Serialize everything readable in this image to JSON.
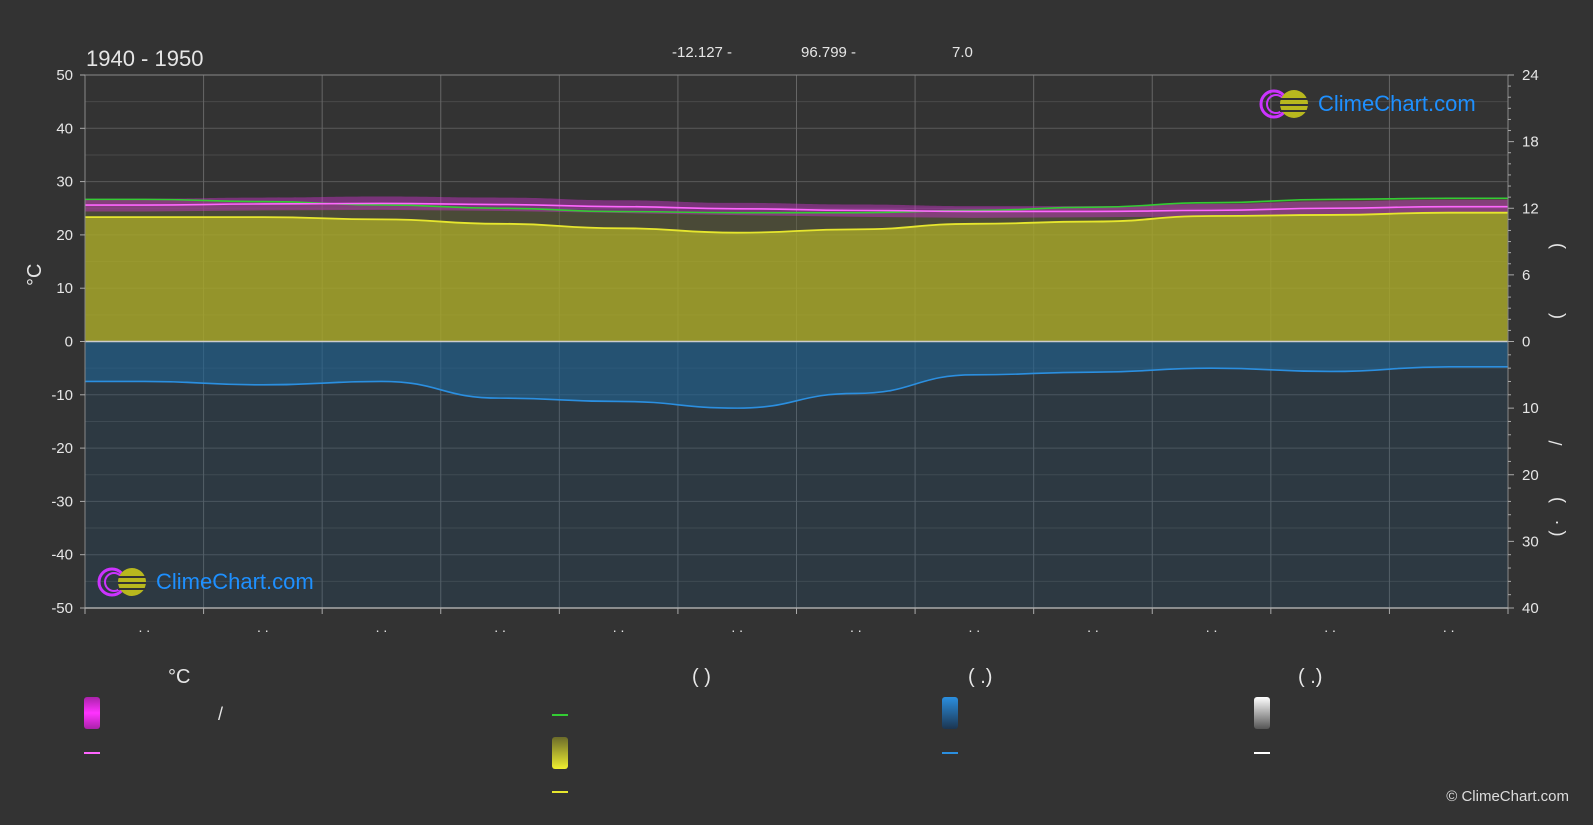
{
  "header": {
    "period": "1940 - 1950",
    "latitude": "-12.127 -",
    "longitude": "96.799 -",
    "elevation": "7.0"
  },
  "brand": {
    "logo_text": "ClimeChart.com",
    "copyright": "© ClimeChart.com"
  },
  "colors": {
    "background": "#333333",
    "sunshine_fill": "#a6a62a",
    "sunshine_line": "#e6e62e",
    "daylight_line": "#33cc33",
    "temp_line": "#ff66ff",
    "temp_band": "#cc33cc",
    "precip_fill": "#1f6fa8",
    "precip_line": "#2b8fe0",
    "brand_blue": "#1e90ff"
  },
  "legend": {
    "temperature_header": "°C",
    "sun_header": "(          )",
    "rain_header": "(   .)",
    "snow_header": "(   .)",
    "temp_range_separator": "/"
  },
  "chart_data": {
    "type": "area",
    "x_months": [
      1,
      2,
      3,
      4,
      5,
      6,
      7,
      8,
      9,
      10,
      11,
      12
    ],
    "x_tick_labels": [
      ". .",
      ". .",
      ". .",
      ". .",
      ". .",
      ". .",
      ". .",
      ". .",
      ". .",
      ". .",
      ". .",
      ". ."
    ],
    "left_axis": {
      "unit_label": "°C",
      "range": [
        -50,
        50
      ],
      "ticks": [
        50,
        40,
        30,
        20,
        10,
        0,
        -10,
        -20,
        -30,
        -40,
        -50
      ]
    },
    "right_axis_top": {
      "range": [
        0,
        24
      ],
      "ticks": [
        24,
        18,
        12,
        6,
        0
      ],
      "label_marks": [
        ")",
        "("
      ]
    },
    "right_axis_bottom": {
      "range": [
        0,
        40
      ],
      "ticks": [
        0,
        10,
        20,
        30,
        40
      ],
      "label_marks": [
        "/",
        ")",
        "( ·"
      ]
    },
    "series": [
      {
        "key": "daylight_hours",
        "axis": "right_top",
        "values": [
          12.8,
          12.6,
          12.3,
          12.0,
          11.7,
          11.6,
          11.6,
          11.8,
          12.1,
          12.5,
          12.8,
          12.9
        ]
      },
      {
        "key": "sunshine_hours",
        "axis": "right_top",
        "values": [
          11.2,
          11.2,
          11.0,
          10.6,
          10.2,
          9.8,
          10.1,
          10.6,
          10.8,
          11.3,
          11.4,
          11.6
        ]
      },
      {
        "key": "mean_temperature",
        "axis": "left",
        "values": [
          25.6,
          25.8,
          25.9,
          25.7,
          25.3,
          24.9,
          24.6,
          24.4,
          24.4,
          24.6,
          25.0,
          25.3
        ]
      },
      {
        "key": "max_temperature",
        "axis": "left",
        "values": [
          26.8,
          27.0,
          27.2,
          27.0,
          26.5,
          26.0,
          25.7,
          25.4,
          25.4,
          25.8,
          26.3,
          26.6
        ]
      },
      {
        "key": "min_temperature",
        "axis": "left",
        "values": [
          24.4,
          24.6,
          24.7,
          24.5,
          24.1,
          23.7,
          23.4,
          23.2,
          23.3,
          23.5,
          23.8,
          24.1
        ]
      },
      {
        "key": "precipitation_mm",
        "axis": "right_bottom",
        "values": [
          6.0,
          6.5,
          6.0,
          8.5,
          9.0,
          10.0,
          7.8,
          5.0,
          4.6,
          4.0,
          4.5,
          3.8
        ]
      }
    ],
    "grid": true
  }
}
